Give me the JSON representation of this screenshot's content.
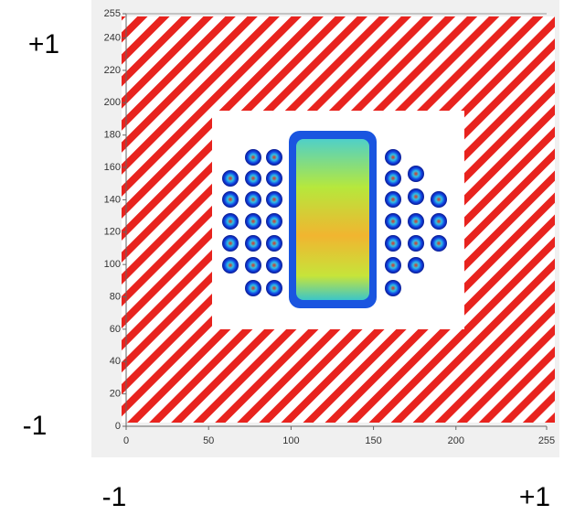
{
  "chart_data": {
    "type": "image",
    "xlim": [
      0,
      255
    ],
    "ylim": [
      0,
      255
    ],
    "xticks": [
      0,
      50,
      100,
      150,
      200,
      255
    ],
    "yticks": [
      0,
      20,
      40,
      60,
      80,
      100,
      120,
      140,
      160,
      180,
      200,
      220,
      240,
      255
    ],
    "annotations": [
      "+1",
      "-1",
      "-1",
      "+1"
    ]
  }
}
